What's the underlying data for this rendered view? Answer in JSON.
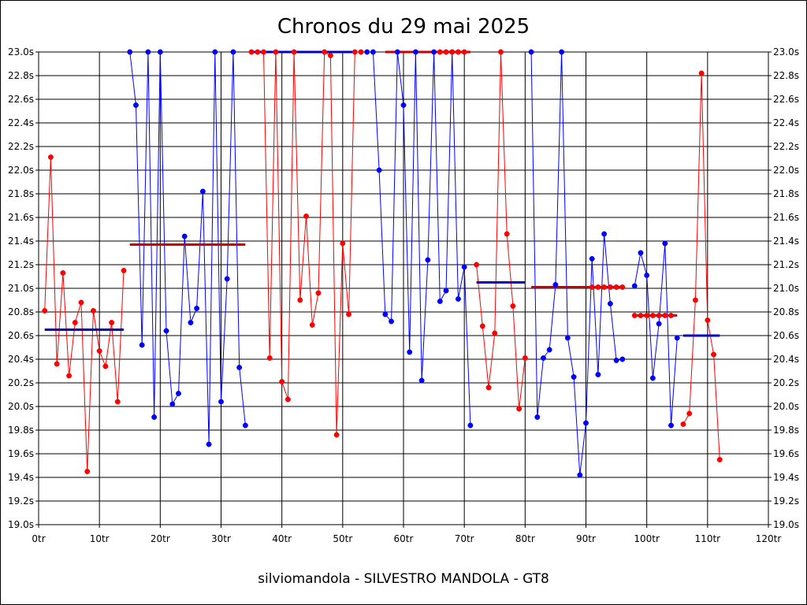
{
  "chart_data": {
    "type": "line",
    "title": "Chronos du 29 mai 2025",
    "subtitle": "silviomandola - SILVESTRO MANDOLA - GT8",
    "ylim": [
      19.0,
      23.0
    ],
    "xlim": [
      0,
      120
    ],
    "ytick_labels": [
      "19.0s",
      "19.2s",
      "19.4s",
      "19.6s",
      "19.8s",
      "20.0s",
      "20.2s",
      "20.4s",
      "20.6s",
      "20.8s",
      "21.0s",
      "21.2s",
      "21.4s",
      "21.6s",
      "21.8s",
      "22.0s",
      "22.2s",
      "22.4s",
      "22.6s",
      "22.8s",
      "23.0s"
    ],
    "xtick_labels": [
      "0tr",
      "10tr",
      "20tr",
      "30tr",
      "40tr",
      "50tr",
      "60tr",
      "70tr",
      "80tr",
      "90tr",
      "100tr",
      "110tr",
      "120tr"
    ],
    "grid": true,
    "colors": {
      "red": "#ff0000",
      "blue": "#0000ff",
      "average_red": "#cc0000",
      "average_blue": "#0000cc"
    },
    "series": [
      {
        "color": "red",
        "x": [
          1,
          2,
          3,
          4,
          5,
          6,
          7,
          8,
          9,
          10,
          11,
          12,
          13,
          14
        ],
        "y": [
          20.81,
          22.11,
          20.36,
          21.13,
          20.26,
          20.71,
          20.88,
          19.45,
          20.81,
          20.47,
          20.34,
          20.71,
          20.04,
          21.15
        ],
        "average": 20.65
      },
      {
        "color": "blue",
        "x": [
          15,
          16,
          17,
          18,
          19,
          20,
          21,
          22,
          23,
          24,
          25,
          26,
          27,
          28,
          29,
          30,
          31,
          32,
          33,
          34
        ],
        "y": [
          23.0,
          22.55,
          20.52,
          23.0,
          19.91,
          23.0,
          20.64,
          20.02,
          20.11,
          21.44,
          20.71,
          20.83,
          21.82,
          19.68,
          23.0,
          20.04,
          21.08,
          23.0,
          20.33,
          19.84
        ],
        "average": 21.37
      },
      {
        "color": "red",
        "x": [
          35,
          36,
          37,
          38,
          39,
          40,
          41,
          42,
          43,
          44,
          45,
          46,
          47,
          48,
          49,
          50,
          51,
          52,
          53
        ],
        "y": [
          23.0,
          23.0,
          23.0,
          20.41,
          23.0,
          20.21,
          20.06,
          23.0,
          20.9,
          21.61,
          20.69,
          20.96,
          23.0,
          22.97,
          19.76,
          21.38,
          20.78,
          23.0,
          23.0
        ],
        "average": 23.0
      },
      {
        "color": "blue",
        "x": [
          54,
          55,
          56,
          57,
          58,
          59,
          60,
          61,
          62,
          63,
          64,
          65,
          66,
          67,
          68,
          69,
          70,
          71
        ],
        "y": [
          23.0,
          23.0,
          22.0,
          20.78,
          20.72,
          23.0,
          22.55,
          20.46,
          23.0,
          20.22,
          21.24,
          23.0,
          20.89,
          20.98,
          23.0,
          20.91,
          21.18,
          19.84
        ],
        "average": 23.0
      },
      {
        "color": "red",
        "x": [
          66,
          67,
          68,
          69,
          70
        ],
        "y": [
          23.0,
          23.0,
          23.0,
          23.0,
          23.0
        ],
        "average": 23.0
      },
      {
        "color": "red",
        "x": [
          72,
          73,
          74,
          75,
          76,
          77,
          78,
          79,
          80
        ],
        "y": [
          21.2,
          20.68,
          20.16,
          20.62,
          23.0,
          21.46,
          20.85,
          19.98,
          20.41
        ],
        "average": 21.06
      },
      {
        "color": "blue",
        "x": [
          81,
          82,
          83,
          84,
          85,
          86,
          87,
          88,
          89,
          90,
          91,
          92,
          93,
          94,
          95,
          96
        ],
        "y": [
          23.0,
          19.91,
          20.41,
          20.48,
          21.03,
          23.0,
          20.58,
          20.25,
          19.42,
          19.86,
          21.25,
          20.27,
          21.46,
          20.87,
          20.39,
          20.4
        ],
        "average": 21.01
      },
      {
        "color": "red",
        "x": [
          91,
          92,
          93,
          94,
          95,
          96
        ],
        "y": [
          21.01,
          21.01,
          21.01,
          21.01,
          21.01,
          21.01
        ],
        "average": 21.01
      },
      {
        "color": "blue",
        "x": [
          98,
          99,
          100,
          101,
          102,
          103,
          104,
          105
        ],
        "y": [
          21.02,
          21.3,
          21.11,
          20.24,
          20.7,
          21.38,
          19.84,
          20.58
        ],
        "average": 20.6
      },
      {
        "color": "red",
        "x": [
          98,
          99,
          100,
          101,
          102,
          103,
          104
        ],
        "y": [
          20.77,
          20.77,
          20.77,
          20.77,
          20.77,
          20.77,
          20.77
        ],
        "average": 20.77
      },
      {
        "color": "red",
        "x": [
          106,
          107,
          108,
          109,
          110,
          111,
          112
        ],
        "y": [
          19.85,
          19.94,
          20.9,
          22.82,
          20.73,
          20.44,
          19.55
        ],
        "average": 20.6
      }
    ],
    "averages": [
      {
        "color": "blue",
        "x_start": 1,
        "x_end": 14,
        "y": 20.65
      },
      {
        "color": "red",
        "x_start": 15,
        "x_end": 34,
        "y": 21.37
      },
      {
        "color": "blue",
        "x_start": 35,
        "x_end": 52,
        "y": 23.0
      },
      {
        "color": "red",
        "x_start": 57,
        "x_end": 71,
        "y": 23.0
      },
      {
        "color": "blue",
        "x_start": 72,
        "x_end": 80,
        "y": 21.05
      },
      {
        "color": "red",
        "x_start": 81,
        "x_end": 96,
        "y": 21.01
      },
      {
        "color": "red",
        "x_start": 98,
        "x_end": 105,
        "y": 20.77
      },
      {
        "color": "blue",
        "x_start": 106,
        "x_end": 112,
        "y": 20.6
      }
    ]
  }
}
